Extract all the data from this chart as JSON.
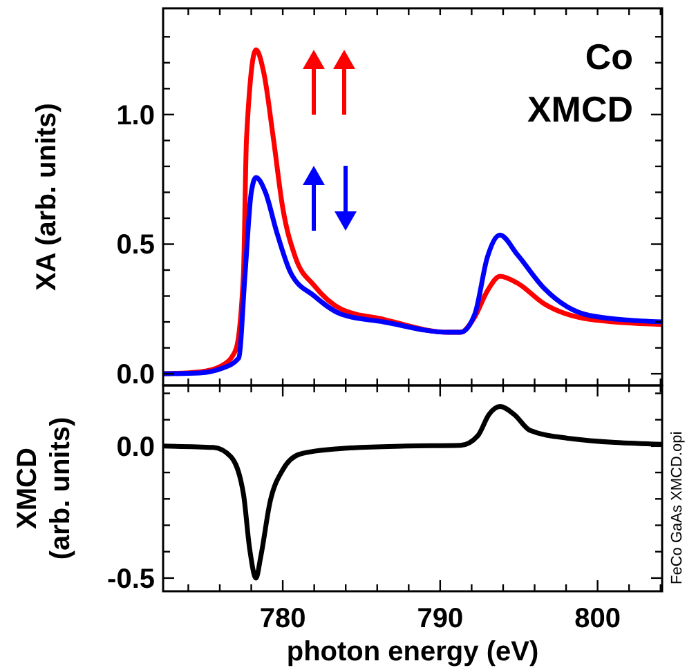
{
  "chart_data": [
    {
      "type": "line",
      "ylabel": "XA (arb. units)",
      "annotations": [
        "Co",
        "XMCD"
      ],
      "xlim": [
        772.4,
        804.1
      ],
      "ylim": [
        -0.045,
        1.41
      ],
      "xticks": [
        {
          "value": 774,
          "label": null
        },
        {
          "value": 776,
          "label": null
        },
        {
          "value": 778,
          "label": null
        },
        {
          "value": 780,
          "label": null
        },
        {
          "value": 782,
          "label": null
        },
        {
          "value": 784,
          "label": null
        },
        {
          "value": 786,
          "label": null
        },
        {
          "value": 788,
          "label": null
        },
        {
          "value": 790,
          "label": null
        },
        {
          "value": 792,
          "label": null
        },
        {
          "value": 794,
          "label": null
        },
        {
          "value": 796,
          "label": null
        },
        {
          "value": 798,
          "label": null
        },
        {
          "value": 800,
          "label": null
        },
        {
          "value": 802,
          "label": null
        },
        {
          "value": 804,
          "label": null
        }
      ],
      "yticks": [
        {
          "value": 0,
          "label": "0.0"
        },
        {
          "value": 0.1,
          "label": null
        },
        {
          "value": 0.2,
          "label": null
        },
        {
          "value": 0.3,
          "label": null
        },
        {
          "value": 0.4,
          "label": null
        },
        {
          "value": 0.5,
          "label": "0.5"
        },
        {
          "value": 0.6,
          "label": null
        },
        {
          "value": 0.7,
          "label": null
        },
        {
          "value": 0.8,
          "label": null
        },
        {
          "value": 0.9,
          "label": null
        },
        {
          "value": 1,
          "label": "1.0"
        },
        {
          "value": 1.1,
          "label": null
        },
        {
          "value": 1.2,
          "label": null
        },
        {
          "value": 1.3,
          "label": null
        }
      ],
      "tick_labels": "y",
      "grid": false,
      "series": [
        {
          "color": "#ff0000",
          "x": [
            772.4,
            774.7,
            776.1,
            777.0,
            777.5,
            777.7,
            778.3,
            778.8,
            779.4,
            780.0,
            780.8,
            782.0,
            783.7,
            786.4,
            790.5,
            791.3,
            792.2,
            793.0,
            793.8,
            794.9,
            796.6,
            799.5,
            804.1
          ],
          "values": [
            0,
            0.007,
            0.03,
            0.09,
            0.38,
            0.91,
            1.25,
            1.16,
            0.91,
            0.64,
            0.45,
            0.34,
            0.25,
            0.21,
            0.16,
            0.16,
            0.22,
            0.32,
            0.376,
            0.35,
            0.27,
            0.21,
            0.19
          ]
        },
        {
          "color": "#0000ff",
          "x": [
            772.4,
            774.7,
            776.1,
            777.2,
            777.6,
            778.0,
            778.3,
            778.9,
            779.6,
            780.5,
            782.0,
            783.7,
            786.4,
            790.5,
            791.3,
            792.2,
            793.0,
            793.8,
            794.9,
            796.6,
            799.5,
            804.1
          ],
          "values": [
            0,
            0.003,
            0.02,
            0.06,
            0.38,
            0.7,
            0.757,
            0.7,
            0.55,
            0.39,
            0.3,
            0.23,
            0.2,
            0.16,
            0.16,
            0.23,
            0.45,
            0.535,
            0.46,
            0.33,
            0.225,
            0.2
          ]
        }
      ]
    },
    {
      "type": "line",
      "ylabel": "XMCD (arb. units)",
      "xlabel": "photon energy (eV)",
      "annotations": [
        "FeCo  GaAs  XMCD.opi"
      ],
      "xlim": [
        772.4,
        804.1
      ],
      "ylim": [
        -0.55,
        0.23
      ],
      "xticks": [
        {
          "value": 774,
          "label": null
        },
        {
          "value": 776,
          "label": null
        },
        {
          "value": 778,
          "label": null
        },
        780,
        {
          "value": 782,
          "label": null
        },
        {
          "value": 784,
          "label": null
        },
        {
          "value": 786,
          "label": null
        },
        {
          "value": 788,
          "label": null
        },
        790,
        {
          "value": 792,
          "label": null
        },
        {
          "value": 794,
          "label": null
        },
        {
          "value": 796,
          "label": null
        },
        {
          "value": 798,
          "label": null
        },
        800,
        {
          "value": 802,
          "label": null
        },
        {
          "value": 804,
          "label": null
        }
      ],
      "yticks": [
        {
          "value": -0.5,
          "label": "-0.5"
        },
        {
          "value": -0.4,
          "label": null
        },
        {
          "value": -0.3,
          "label": null
        },
        {
          "value": -0.2,
          "label": null
        },
        {
          "value": -0.1,
          "label": null
        },
        {
          "value": 0,
          "label": "0.0"
        },
        {
          "value": 0.1,
          "label": null
        },
        {
          "value": 0.2,
          "label": null
        }
      ],
      "grid": false,
      "series": [
        {
          "color": "#000000",
          "x": [
            772.4,
            775.6,
            776.7,
            777.5,
            777.9,
            778.3,
            778.6,
            779.2,
            780.0,
            781.1,
            783.5,
            787.8,
            791.3,
            792.4,
            793.1,
            793.8,
            794.7,
            795.7,
            798.1,
            804.1
          ],
          "values": [
            0,
            -0.005,
            -0.04,
            -0.18,
            -0.39,
            -0.5,
            -0.42,
            -0.21,
            -0.09,
            -0.03,
            -0.01,
            0,
            0.003,
            0.04,
            0.12,
            0.15,
            0.12,
            0.06,
            0.03,
            0.007
          ]
        }
      ]
    }
  ]
}
